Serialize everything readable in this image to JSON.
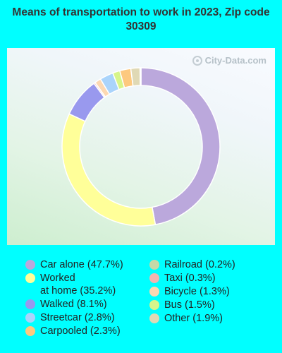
{
  "chart_data": {
    "type": "pie",
    "title": "Means of transportation to work in 2023, Zip code 30309",
    "donut": true,
    "slices": [
      {
        "label": "Car alone (47.7%)",
        "value": 47.7,
        "color": "#bba8dc"
      },
      {
        "label": "Worked\nat home (35.2%)",
        "value": 35.2,
        "color": "#ffff99"
      },
      {
        "label": "Walked (8.1%)",
        "value": 8.1,
        "color": "#9999ee"
      },
      {
        "label": "Taxi (0.3%)",
        "value": 0.3,
        "color": "#f2b5b0"
      },
      {
        "label": "Bicycle (1.3%)",
        "value": 1.3,
        "color": "#fcd8b2"
      },
      {
        "label": "Streetcar (2.8%)",
        "value": 2.8,
        "color": "#aad4fb"
      },
      {
        "label": "Bus (1.5%)",
        "value": 1.5,
        "color": "#d7f58a"
      },
      {
        "label": "Carpooled (2.3%)",
        "value": 2.3,
        "color": "#fdc97f"
      },
      {
        "label": "Other (1.9%)",
        "value": 1.9,
        "color": "#e0d9b5"
      },
      {
        "label": "Railroad (0.2%)",
        "value": 0.2,
        "color": "#c6d9a8"
      }
    ],
    "legend_columns": [
      [
        "Car alone (47.7%)",
        "Worked\nat home (35.2%)",
        "Walked (8.1%)",
        "Streetcar (2.8%)",
        "Carpooled (2.3%)"
      ],
      [
        "Railroad (0.2%)",
        "Taxi (0.3%)",
        "Bicycle (1.3%)",
        "Bus (1.5%)",
        "Other (1.9%)"
      ]
    ]
  },
  "watermark": "City-Data.com"
}
